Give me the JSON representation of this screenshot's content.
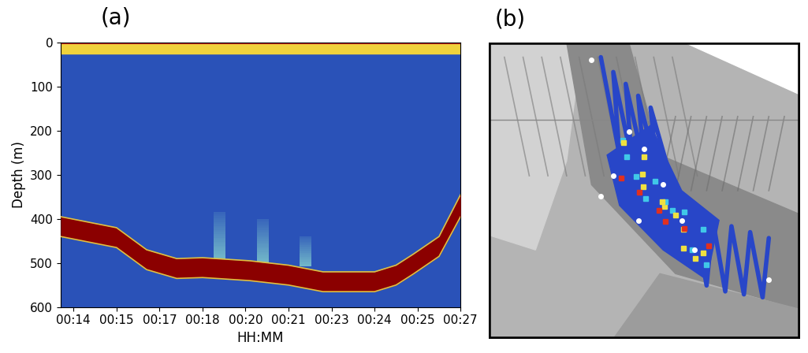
{
  "chart_data": [
    {
      "type": "echogram",
      "title": "(a)",
      "x_label": "HH:MM",
      "y_label": "Depth (m)",
      "categories": [
        "00:14",
        "00:15",
        "00:17",
        "00:18",
        "00:20",
        "00:21",
        "00:23",
        "00:24",
        "00:25",
        "00:27"
      ],
      "xlim": [
        -0.3,
        9
      ],
      "ylim": [
        600,
        0
      ],
      "yticks": [
        0,
        100,
        200,
        300,
        400,
        500,
        600
      ],
      "surface_layer": {
        "top": 0,
        "bottom": 25
      },
      "seafloor": {
        "x": [
          -0.3,
          1,
          1.7,
          2.4,
          3,
          4.1,
          5,
          5.8,
          7,
          7.5,
          7.9,
          8.5,
          9
        ],
        "top": [
          395,
          420,
          470,
          490,
          488,
          495,
          505,
          520,
          520,
          505,
          480,
          440,
          345
        ],
        "bottom": [
          440,
          465,
          515,
          535,
          533,
          540,
          550,
          565,
          565,
          550,
          525,
          485,
          395
        ]
      },
      "plumes": [
        {
          "x": 3.4,
          "top": 385,
          "bottom": 492
        },
        {
          "x": 4.4,
          "top": 400,
          "bottom": 500
        },
        {
          "x": 5.4,
          "top": 440,
          "bottom": 508
        }
      ]
    },
    {
      "type": "map",
      "title": "(b)"
    }
  ]
}
